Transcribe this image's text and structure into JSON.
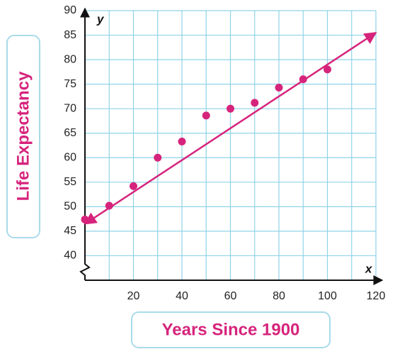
{
  "chart_data": {
    "type": "scatter",
    "x_label": "Years Since 1900",
    "y_label": "Life Expectancy",
    "x_axis_letter": "x",
    "y_axis_letter": "y",
    "x": [
      0,
      10,
      20,
      30,
      40,
      50,
      60,
      70,
      80,
      90,
      100
    ],
    "values": [
      47.4,
      50.2,
      54.2,
      60,
      63.3,
      68.6,
      70,
      71.2,
      74.3,
      76,
      78
    ],
    "color": "#d6247c",
    "trend_line": {
      "x": [
        0,
        120
      ],
      "y": [
        46.5,
        85.5
      ]
    },
    "xlim": [
      0,
      120
    ],
    "ylim": [
      35,
      90
    ],
    "xticks": [
      20,
      40,
      60,
      80,
      100,
      120
    ],
    "yticks": [
      40,
      45,
      50,
      55,
      60,
      65,
      70,
      75,
      80,
      85,
      90
    ],
    "grid": true
  }
}
